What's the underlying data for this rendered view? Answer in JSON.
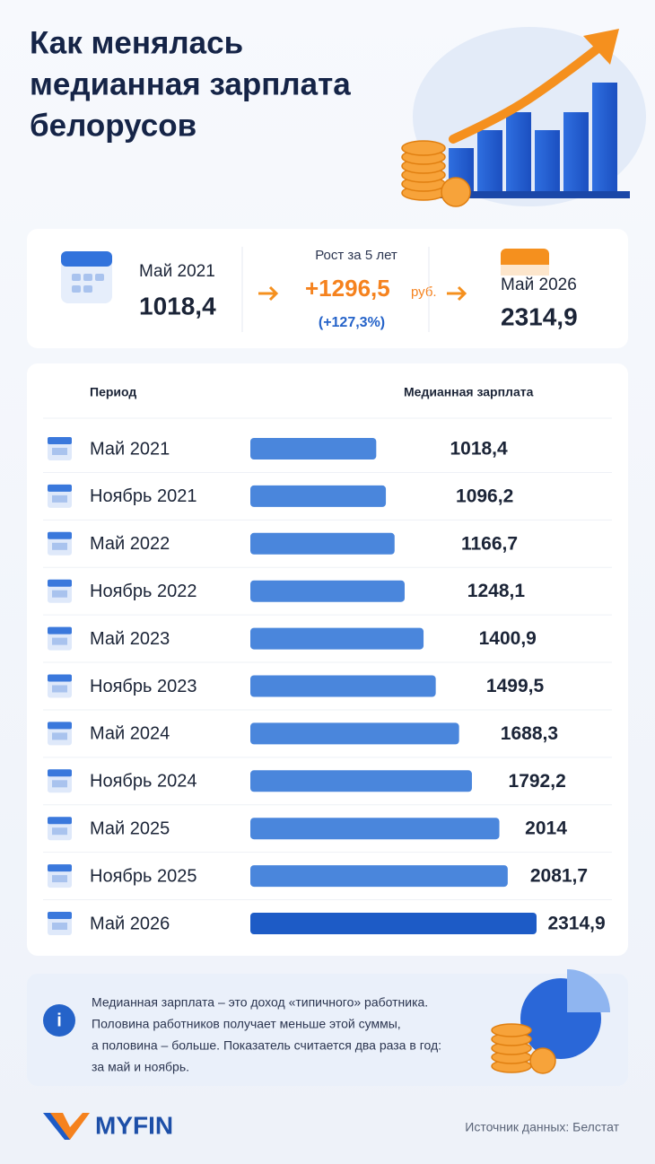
{
  "header": {
    "title": [
      "Как менялась",
      "медианная зарплата",
      "белорусов"
    ]
  },
  "summary": {
    "start": {
      "period": "Май 2021",
      "value": "1018,4"
    },
    "growth": {
      "label": "Рост за 5 лет",
      "value": "+1296,5",
      "unit": "руб.",
      "percent": "(+127,3%)"
    },
    "end": {
      "period": "Май 2026",
      "value": "2314,9"
    }
  },
  "chart_data": {
    "type": "bar",
    "orientation": "horizontal",
    "column_headers": [
      "Период",
      "Медианная зарплата"
    ],
    "categories": [
      "Май 2021",
      "Ноябрь 2021",
      "Май 2022",
      "Ноябрь 2022",
      "Май 2023",
      "Ноябрь 2023",
      "Май 2024",
      "Ноябрь 2024",
      "Май 2025",
      "Ноябрь 2025",
      "Май 2026"
    ],
    "values": [
      1018.4,
      1096.2,
      1166.7,
      1248.1,
      1400.9,
      1499.5,
      1688.3,
      1792.2,
      2014,
      2081.7,
      2314.9
    ],
    "value_labels": [
      "1018,4",
      "1096,2",
      "1166,7",
      "1248,1",
      "1400,9",
      "1499,5",
      "1688,3",
      "1792,2",
      "2014",
      "2081,7",
      "2314,9"
    ],
    "colors": [
      "#4a86dc",
      "#4a86dc",
      "#4a86dc",
      "#4a86dc",
      "#4a86dc",
      "#4a86dc",
      "#4a86dc",
      "#4a86dc",
      "#4a86dc",
      "#4a86dc",
      "#1d5bc6"
    ]
  },
  "info": {
    "lines": [
      "Медианная зарплата – это доход «типичного» работника.",
      "Половина работников получает меньше этой суммы,",
      "а половина – больше. Показатель считается два раза в год:",
      "за май и ноябрь."
    ]
  },
  "footer": {
    "logo": "MYFIN",
    "source": "Источник данных: Белстат"
  }
}
